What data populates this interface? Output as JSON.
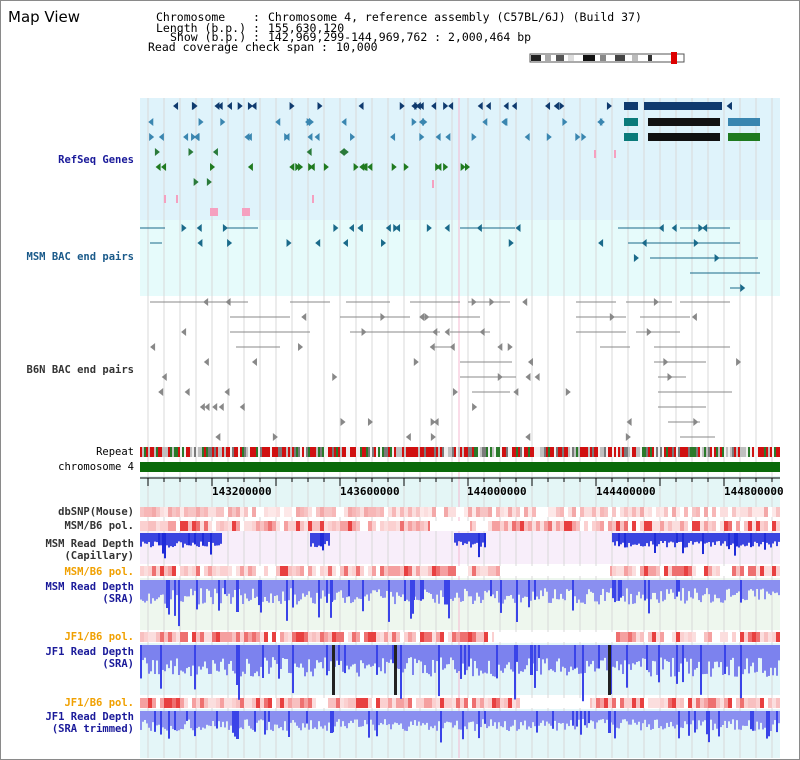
{
  "view": {
    "title": "Map View"
  },
  "header": {
    "chromosome_label": "Chromosome",
    "chromosome_value": "Chromosome 4, reference assembly (C57BL/6J) (Build 37)",
    "length_label": "Length (b.p.)",
    "length_value": "155,630,120",
    "show_label": "Show (b.p.)",
    "show_value": "142,969,299-144,969,762 : 2,000,464 bp",
    "coverage_label": "Read coverage check span",
    "coverage_value": "10,000"
  },
  "tracks": {
    "refseq": "RefSeq Genes",
    "msm_bac": "MSM BAC end pairs",
    "b6n_bac": "B6N BAC end pairs",
    "repeat": "Repeat",
    "chromosome": "chromosome 4",
    "dbsnp": "dbSNP(Mouse)",
    "msm_pol": "MSM/B6 pol.",
    "msm_depth_cap": "MSM Read Depth\n(Capillary)",
    "msm_pol2": "MSM/B6 pol.",
    "msm_depth_sra": "MSM Read Depth\n(SRA)",
    "jf1_pol": "JF1/B6 pol.",
    "jf1_depth_sra": "JF1 Read Depth\n(SRA)",
    "jf1_pol2": "JF1/B6 pol.",
    "jf1_depth_trim": "JF1 Read Depth\n(SRA trimmed)"
  },
  "axis": {
    "ticks": [
      "143200000",
      "143600000",
      "144000000",
      "144400000",
      "144800000"
    ]
  },
  "colors": {
    "refseq_bg": "#dff3fb",
    "msm_bac_bg": "#e6fbfb",
    "depth_bar": "#1f2bd9",
    "depth_light": "#8a8ff0",
    "chromosome_bar": "#0a6a0a",
    "label_blue": "#1a1a9a",
    "label_orange": "#f0a000"
  }
}
